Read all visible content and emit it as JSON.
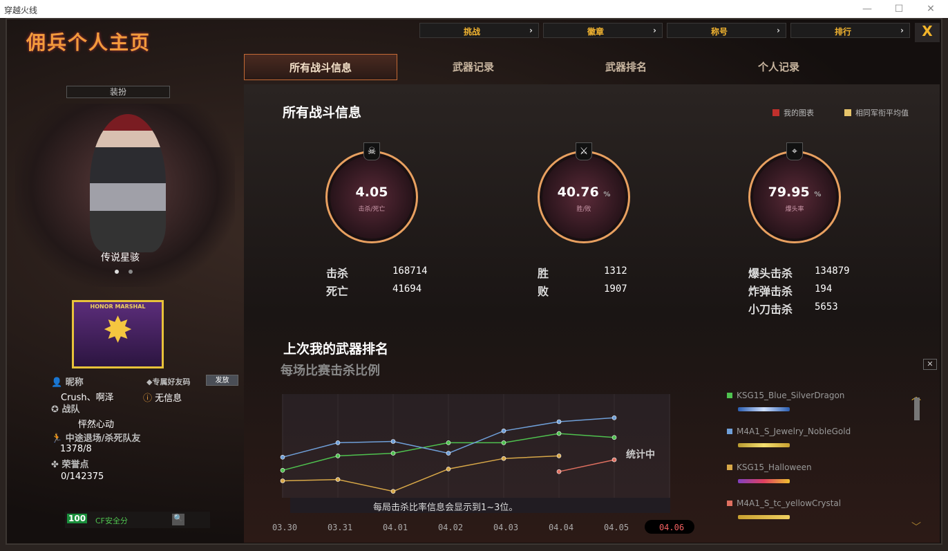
{
  "window": {
    "title": "穿越火线",
    "min": "—",
    "max": "☐",
    "close": "✕"
  },
  "left": {
    "title": "佣兵个人主页",
    "dress_button": "装扮",
    "character_name": "传说星骇",
    "badge_text": "HONOR MARSHAL",
    "nickname_label": "昵称",
    "nickname": "Crush、啊泽",
    "friend_code_label": "专属好友码",
    "send_button": "发放",
    "friend_code_value": "无信息",
    "team_label": "战队",
    "team": "怦然心动",
    "quit_label": "中途退场/杀死队友",
    "quit_value": "1378/8",
    "honor_label": "荣誉点",
    "honor_value": "0/142375",
    "security_score": "100",
    "security_label": "CF安全分"
  },
  "topnav": [
    {
      "label": "挑战"
    },
    {
      "label": "徽章"
    },
    {
      "label": "称号"
    },
    {
      "label": "排行"
    }
  ],
  "close_label": "X",
  "tabs": [
    {
      "label": "所有战斗信息",
      "active": true
    },
    {
      "label": "武器记录"
    },
    {
      "label": "武器排名"
    },
    {
      "label": "个人记录"
    }
  ],
  "main": {
    "title": "所有战斗信息",
    "legend": [
      {
        "label": "我的图表",
        "color": "#c0302c"
      },
      {
        "label": "相同军衔平均值",
        "color": "#e6c46a"
      }
    ],
    "gauges": [
      {
        "icon": "skull-icon",
        "value": "4.05",
        "unit": "",
        "label": "击杀/死亡"
      },
      {
        "icon": "crossed-swords-icon",
        "value": "40.76",
        "unit": "%",
        "label": "胜/败"
      },
      {
        "icon": "headshot-icon",
        "value": "79.95",
        "unit": "%",
        "label": "爆头率"
      }
    ],
    "stats": [
      [
        {
          "k": "击杀",
          "v": "168714"
        },
        {
          "k": "死亡",
          "v": "41694"
        }
      ],
      [
        {
          "k": "胜",
          "v": "1312"
        },
        {
          "k": "败",
          "v": "1907"
        }
      ],
      [
        {
          "k": "爆头击杀",
          "v": "134879"
        },
        {
          "k": "炸弹击杀",
          "v": "194"
        },
        {
          "k": "小刀击杀",
          "v": "5653"
        }
      ]
    ],
    "weapon_title": "上次我的武器排名",
    "chart_title": "每场比赛击杀比例",
    "chart_status": "统计中",
    "chart_note": "每局击杀比率信息会显示到1~3位。"
  },
  "chart_data": {
    "type": "line",
    "title": "每场比赛击杀比例",
    "categories": [
      "03.30",
      "03.31",
      "04.01",
      "04.02",
      "04.03",
      "04.04",
      "04.05",
      "04.06"
    ],
    "highlighted_category": "04.06",
    "series": [
      {
        "name": "KSG15_Blue_SilverDragon",
        "color": "#4fc24f",
        "values": [
          33,
          44,
          46,
          54,
          54,
          61,
          58,
          null
        ]
      },
      {
        "name": "M4A1_S_Jewelry_NobleGold",
        "color": "#6f9fd8",
        "values": [
          43,
          54,
          55,
          46,
          63,
          70,
          73,
          null
        ]
      },
      {
        "name": "KSG15_Halloween",
        "color": "#d8a848",
        "values": [
          25,
          26,
          17,
          34,
          42,
          44,
          null,
          null
        ]
      },
      {
        "name": "M4A1_S_tc_yellowCrystal",
        "color": "#e07060",
        "values": [
          null,
          null,
          null,
          null,
          null,
          32,
          41,
          null
        ]
      }
    ],
    "grid": true,
    "legend": "right"
  }
}
